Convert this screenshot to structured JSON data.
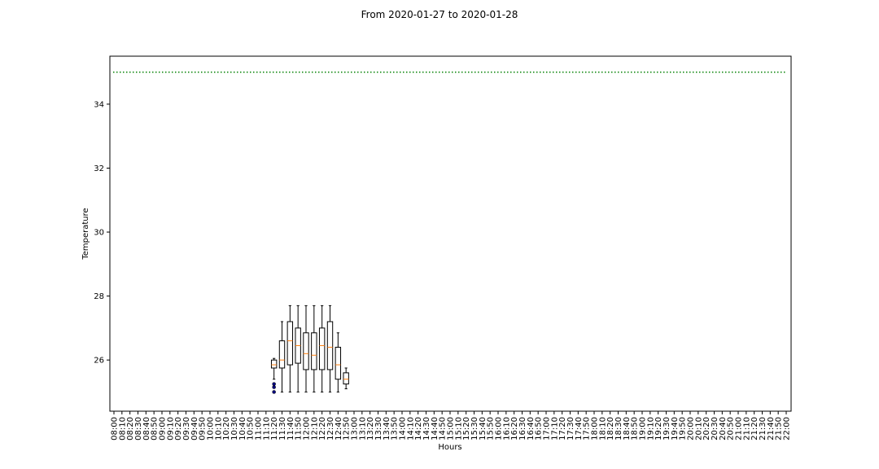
{
  "chart_data": {
    "type": "boxplot",
    "title": "From 2020-01-27 to 2020-01-28",
    "xlabel": "Hours",
    "ylabel": "Temperature",
    "ylim": [
      24.4,
      35.5
    ],
    "yticks": [
      26,
      28,
      30,
      32,
      34
    ],
    "categories": [
      "08:00",
      "08:10",
      "08:20",
      "08:30",
      "08:40",
      "08:50",
      "09:00",
      "09:10",
      "09:20",
      "09:30",
      "09:40",
      "09:50",
      "10:00",
      "10:10",
      "10:20",
      "10:30",
      "10:40",
      "10:50",
      "11:00",
      "11:10",
      "11:20",
      "11:30",
      "11:40",
      "11:50",
      "12:00",
      "12:10",
      "12:20",
      "12:30",
      "12:40",
      "12:50",
      "13:00",
      "13:10",
      "13:20",
      "13:30",
      "13:40",
      "13:50",
      "14:00",
      "14:10",
      "14:20",
      "14:30",
      "14:40",
      "14:50",
      "15:00",
      "15:10",
      "15:20",
      "15:30",
      "15:40",
      "15:50",
      "16:00",
      "16:10",
      "16:20",
      "16:30",
      "16:40",
      "16:50",
      "17:00",
      "17:10",
      "17:20",
      "17:30",
      "17:40",
      "17:50",
      "18:00",
      "18:10",
      "18:20",
      "18:30",
      "18:40",
      "18:50",
      "19:00",
      "19:10",
      "19:20",
      "19:30",
      "19:40",
      "19:50",
      "20:00",
      "20:10",
      "20:20",
      "20:30",
      "20:40",
      "20:50",
      "21:00",
      "21:10",
      "21:20",
      "21:30",
      "21:40",
      "21:50",
      "22:00"
    ],
    "boxes": [
      {
        "category": "11:20",
        "whisker_low": 25.4,
        "q1": 25.75,
        "median": 25.85,
        "q3": 26.0,
        "whisker_high": 26.05,
        "outliers": [
          25.0,
          25.15,
          25.25
        ]
      },
      {
        "category": "11:30",
        "whisker_low": 25.0,
        "q1": 25.75,
        "median": 26.0,
        "q3": 26.6,
        "whisker_high": 27.2,
        "outliers": []
      },
      {
        "category": "11:40",
        "whisker_low": 25.0,
        "q1": 25.85,
        "median": 26.6,
        "q3": 27.2,
        "whisker_high": 27.7,
        "outliers": []
      },
      {
        "category": "11:50",
        "whisker_low": 25.0,
        "q1": 25.9,
        "median": 26.45,
        "q3": 27.0,
        "whisker_high": 27.7,
        "outliers": []
      },
      {
        "category": "12:00",
        "whisker_low": 25.0,
        "q1": 25.7,
        "median": 26.2,
        "q3": 26.85,
        "whisker_high": 27.7,
        "outliers": []
      },
      {
        "category": "12:10",
        "whisker_low": 25.0,
        "q1": 25.7,
        "median": 26.15,
        "q3": 26.85,
        "whisker_high": 27.7,
        "outliers": []
      },
      {
        "category": "12:20",
        "whisker_low": 25.0,
        "q1": 25.7,
        "median": 26.45,
        "q3": 27.0,
        "whisker_high": 27.7,
        "outliers": []
      },
      {
        "category": "12:30",
        "whisker_low": 25.0,
        "q1": 25.7,
        "median": 26.4,
        "q3": 27.2,
        "whisker_high": 27.7,
        "outliers": []
      },
      {
        "category": "12:40",
        "whisker_low": 25.0,
        "q1": 25.4,
        "median": 25.85,
        "q3": 26.4,
        "whisker_high": 26.85,
        "outliers": []
      },
      {
        "category": "12:50",
        "whisker_low": 25.1,
        "q1": 25.25,
        "median": 25.4,
        "q3": 25.6,
        "whisker_high": 25.75,
        "outliers": []
      }
    ],
    "reference_line": {
      "y": 35,
      "color": "#008000",
      "style": "dotted"
    },
    "colors": {
      "box": "#000000",
      "median": "#ff7f0e",
      "outlier": "#000080"
    },
    "grid": false
  }
}
